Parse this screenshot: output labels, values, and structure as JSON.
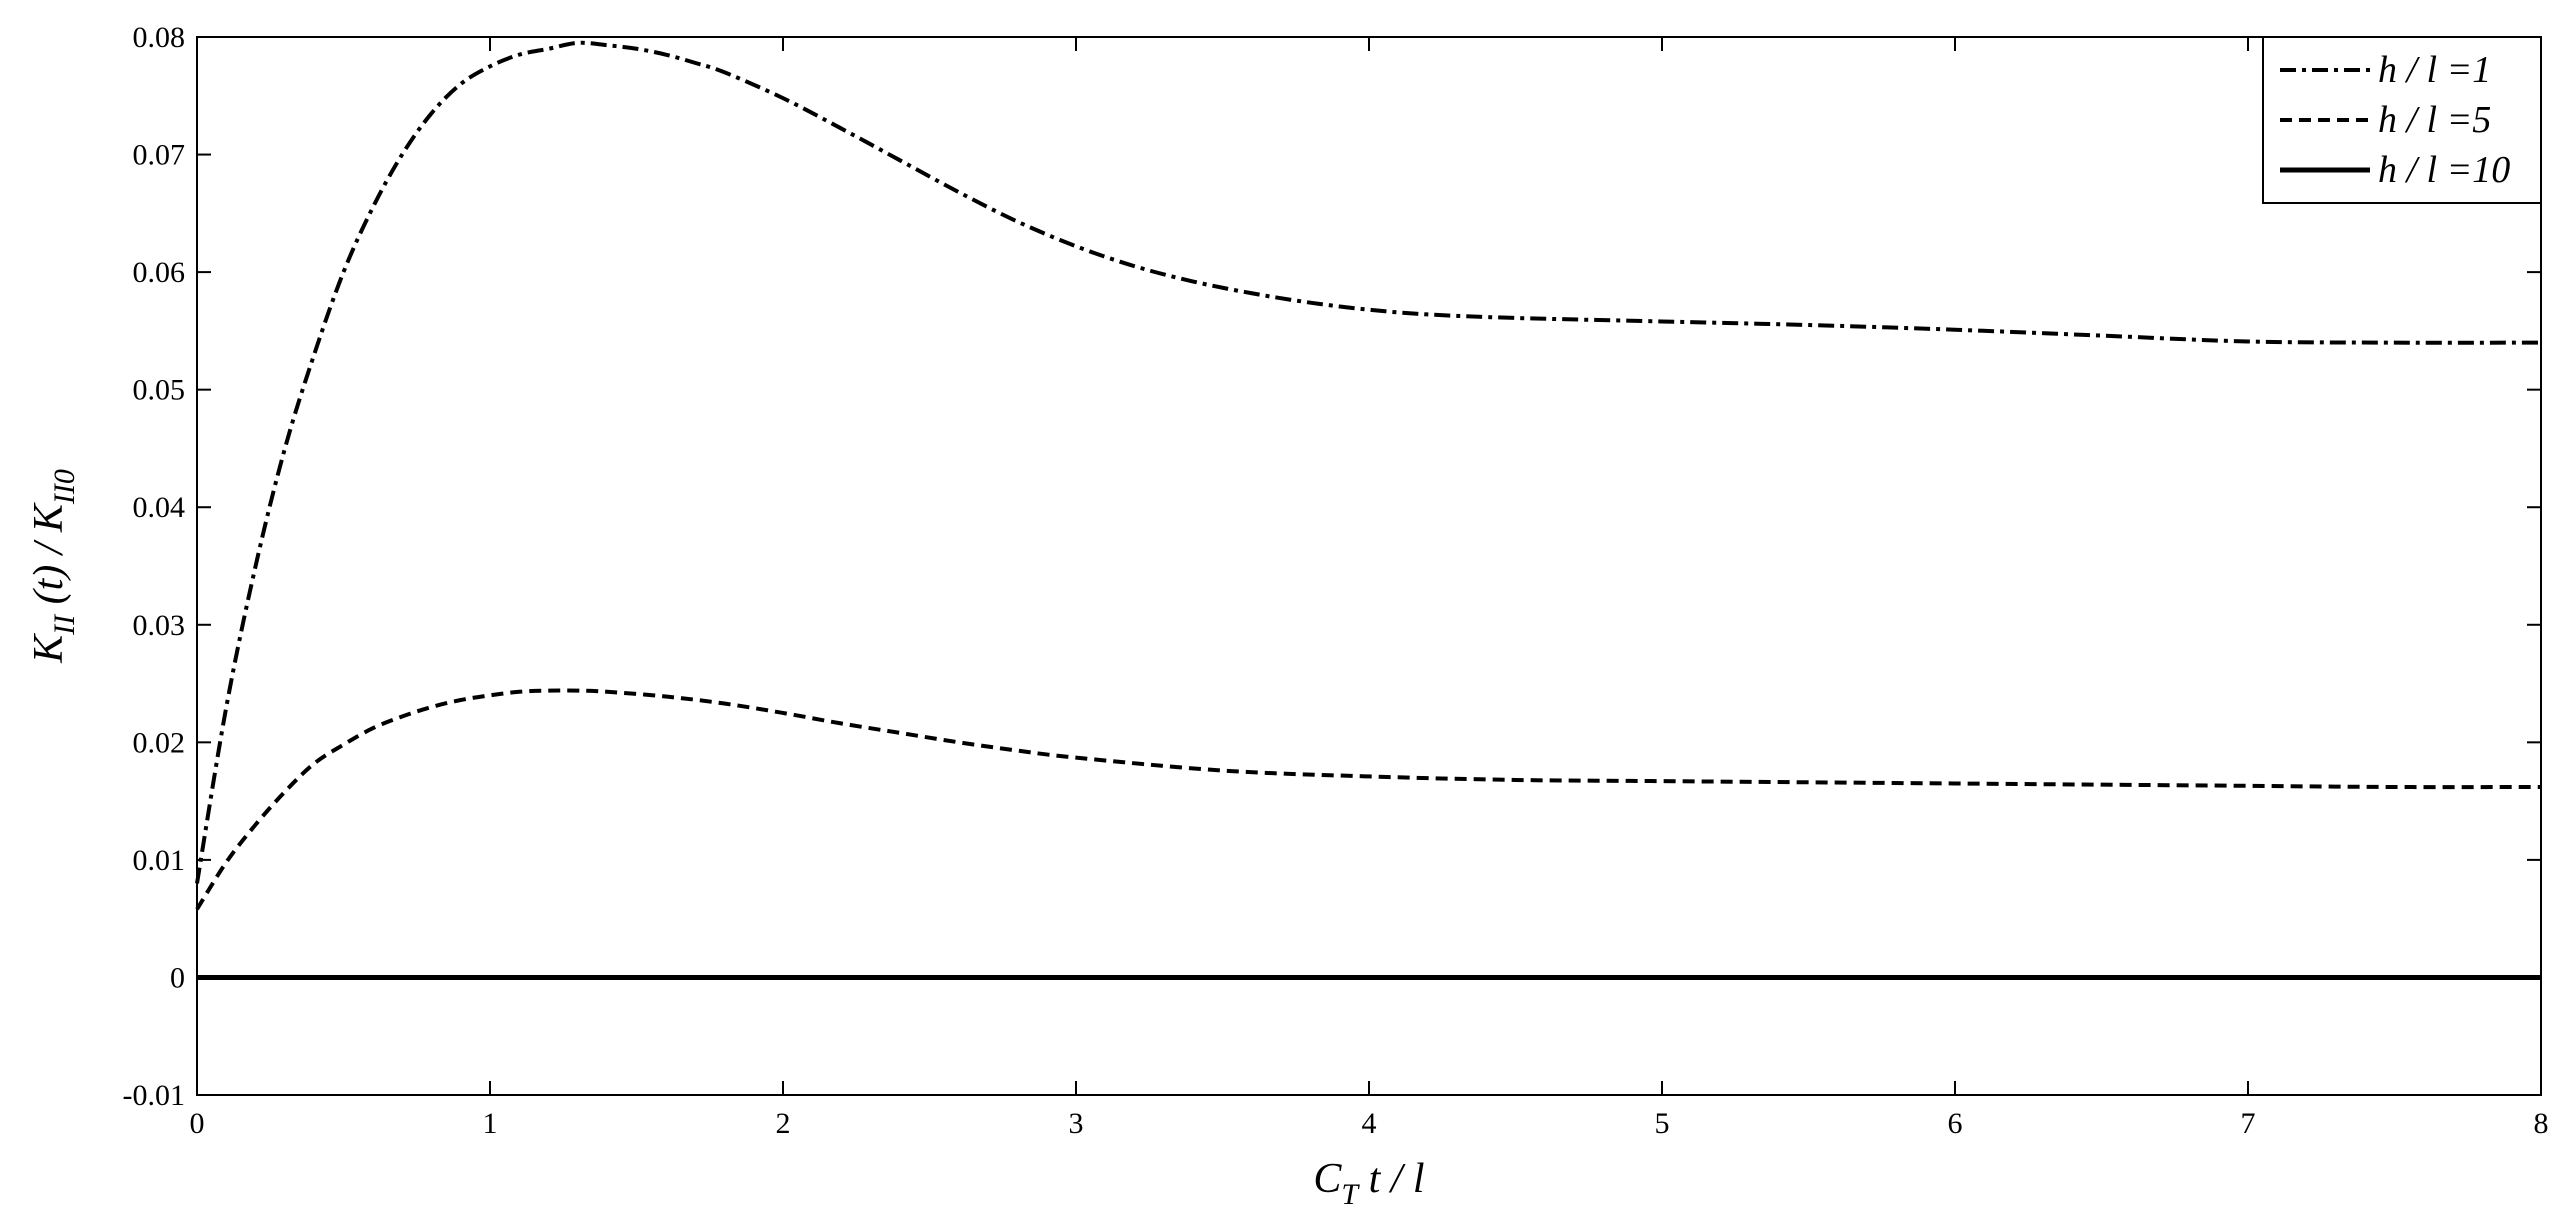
{
  "chart_data": {
    "type": "line",
    "title": "",
    "xlabel": {
      "main": "C",
      "sub": "T",
      "rest": " t / l"
    },
    "ylabel": {
      "k1": "K",
      "s1": "II",
      "mid": " (t) / K",
      "s2": "II0"
    },
    "xlim": [
      0,
      8
    ],
    "ylim": [
      -0.01,
      0.08
    ],
    "xticks": [
      0,
      1,
      2,
      3,
      4,
      5,
      6,
      7,
      8
    ],
    "xtick_labels": [
      "0",
      "1",
      "2",
      "3",
      "4",
      "5",
      "6",
      "7",
      "8"
    ],
    "yticks": [
      -0.01,
      0,
      0.01,
      0.02,
      0.03,
      0.04,
      0.05,
      0.06,
      0.07,
      0.08
    ],
    "ytick_labels": [
      "-0.01",
      "0",
      "0.01",
      "0.02",
      "0.03",
      "0.04",
      "0.05",
      "0.06",
      "0.07",
      "0.08"
    ],
    "grid": false,
    "legend_position": "top-right",
    "series": [
      {
        "name": "h / l =1",
        "style": "dash-dot",
        "x": [
          0,
          0.1,
          0.2,
          0.3,
          0.4,
          0.5,
          0.6,
          0.7,
          0.8,
          0.9,
          1.0,
          1.1,
          1.2,
          1.3,
          1.4,
          1.5,
          1.6,
          1.7,
          1.8,
          2.0,
          2.2,
          2.4,
          2.6,
          2.8,
          3.0,
          3.2,
          3.4,
          3.6,
          3.8,
          4.0,
          4.2,
          4.5,
          5.0,
          5.5,
          6.0,
          6.5,
          7.0,
          7.5,
          8.0
        ],
        "y": [
          0.008,
          0.023,
          0.035,
          0.045,
          0.053,
          0.06,
          0.0655,
          0.07,
          0.0735,
          0.076,
          0.0775,
          0.0785,
          0.079,
          0.0795,
          0.0793,
          0.079,
          0.0785,
          0.0778,
          0.077,
          0.0748,
          0.0722,
          0.0695,
          0.0668,
          0.0643,
          0.0622,
          0.0605,
          0.0592,
          0.0582,
          0.0574,
          0.0568,
          0.0564,
          0.0561,
          0.0558,
          0.0555,
          0.0551,
          0.0546,
          0.0541,
          0.054,
          0.054
        ]
      },
      {
        "name": "h / l =5",
        "style": "dashed",
        "x": [
          0,
          0.1,
          0.2,
          0.3,
          0.4,
          0.5,
          0.6,
          0.7,
          0.8,
          0.9,
          1.0,
          1.1,
          1.2,
          1.3,
          1.4,
          1.6,
          1.8,
          2.0,
          2.2,
          2.4,
          2.6,
          2.8,
          3.0,
          3.5,
          4.0,
          4.5,
          5.0,
          5.5,
          6.0,
          6.5,
          7.0,
          7.5,
          8.0
        ],
        "y": [
          0.0058,
          0.0098,
          0.013,
          0.0158,
          0.0182,
          0.0198,
          0.0212,
          0.0222,
          0.023,
          0.0236,
          0.024,
          0.0243,
          0.0244,
          0.0244,
          0.0243,
          0.0239,
          0.0233,
          0.0225,
          0.0216,
          0.0208,
          0.02,
          0.0193,
          0.0187,
          0.0176,
          0.0171,
          0.0168,
          0.0167,
          0.0166,
          0.0165,
          0.0164,
          0.0163,
          0.0162,
          0.0162
        ]
      },
      {
        "name": "h / l =10",
        "style": "solid",
        "x": [
          0,
          8
        ],
        "y": [
          0,
          0
        ]
      }
    ]
  }
}
